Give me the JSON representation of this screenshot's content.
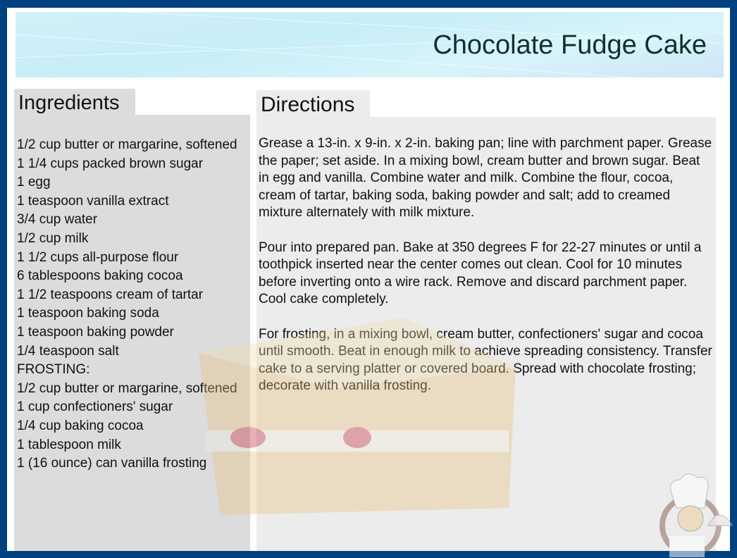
{
  "title": "Chocolate Fudge Cake",
  "ingredients": {
    "heading": "Ingredients",
    "items": [
      "1/2 cup butter or margarine, softened",
      "1 1/4 cups packed brown sugar",
      "1 egg",
      "1 teaspoon vanilla extract",
      "3/4 cup water",
      "1/2 cup milk",
      "1 1/2 cups all-purpose flour",
      "6 tablespoons baking cocoa",
      "1 1/2 teaspoons cream of tartar",
      "1 teaspoon baking soda",
      "1 teaspoon baking powder",
      "1/4 teaspoon salt",
      "FROSTING:",
      "1/2 cup butter or margarine, softened",
      "1 cup confectioners' sugar",
      "1/4 cup baking cocoa",
      "1 tablespoon milk",
      "1 (16 ounce) can vanilla frosting"
    ]
  },
  "directions": {
    "heading": "Directions",
    "paragraphs": [
      "Grease a 13-in. x 9-in. x 2-in. baking pan; line with parchment paper. Grease the paper; set aside. In a mixing bowl, cream butter and brown sugar. Beat in egg and vanilla. Combine water and milk. Combine the flour, cocoa, cream of tartar, baking soda, baking powder and salt; add to creamed mixture alternately with milk mixture.",
      "Pour into prepared pan. Bake at 350 degrees F for 22-27 minutes or until a toothpick inserted near the center comes out clean. Cool for 10 minutes before inverting onto a wire rack. Remove and discard parchment paper. Cool cake completely.",
      "For frosting, in a mixing bowl, cream butter, confectioners' sugar and cocoa until smooth. Beat in enough milk to achieve spreading consistency. Transfer cake to a serving platter or covered board. Spread with chocolate frosting; decorate with vanilla frosting."
    ]
  },
  "colors": {
    "border": "#00427f",
    "ingredients_bg": "#dcdcdc",
    "directions_bg": "#ececec"
  }
}
